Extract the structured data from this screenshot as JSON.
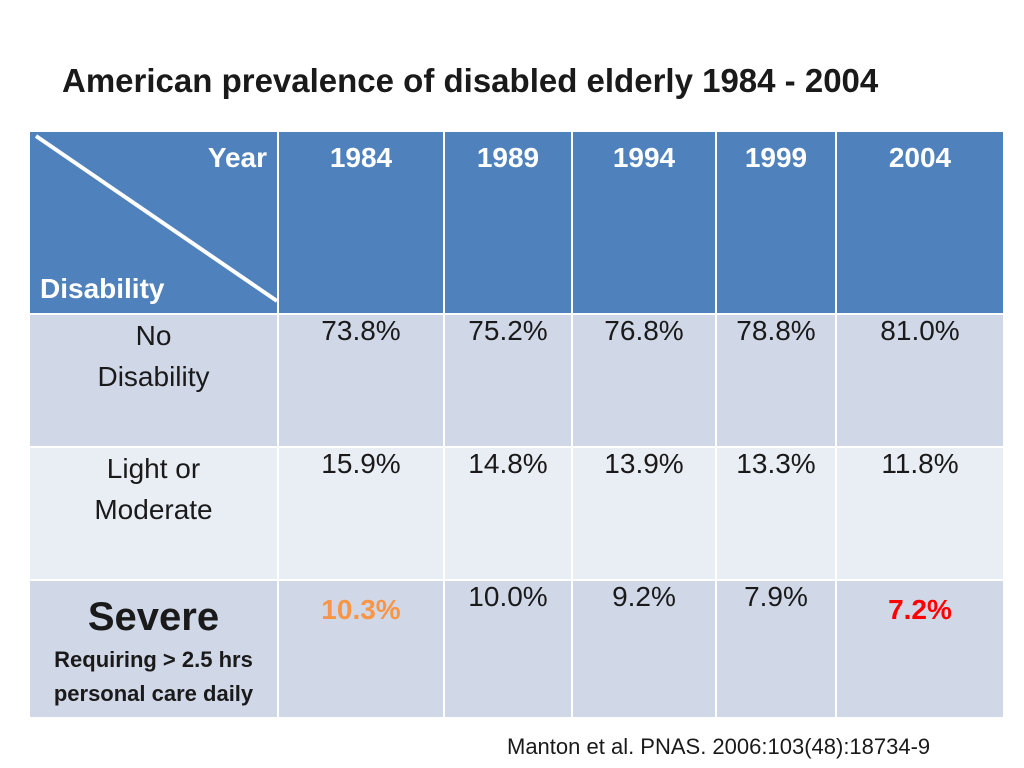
{
  "title": "American prevalence of disabled elderly 1984 - 2004",
  "header": {
    "corner_top": "Year",
    "corner_bottom": "Disability",
    "years": [
      "1984",
      "1989",
      "1994",
      "1999",
      "2004"
    ]
  },
  "rows": [
    {
      "label_line1": "No",
      "label_line2": "Disability",
      "values": [
        "73.8%",
        "75.2%",
        "76.8%",
        "78.8%",
        "81.0%"
      ]
    },
    {
      "label_line1": "Light or",
      "label_line2": "Moderate",
      "values": [
        "15.9%",
        "14.8%",
        "13.9%",
        "13.3%",
        "11.8%"
      ]
    },
    {
      "label_main": "Severe",
      "label_sub1": "Requiring > 2.5 hrs",
      "label_sub2": "personal care daily",
      "values": [
        "10.3%",
        "10.0%",
        "9.2%",
        "7.9%",
        "7.2%"
      ]
    }
  ],
  "source": "Manton et al. PNAS. 2006:103(48):18734-9",
  "colors": {
    "header_bg": "#4f81bd",
    "row_dark": "#d0d8e8",
    "row_light": "#e9edf4",
    "highlight_1984": "#f79646",
    "highlight_2004": "#ff0000"
  },
  "chart_data": {
    "type": "table",
    "title": "American prevalence of disabled elderly 1984 - 2004",
    "columns": [
      "1984",
      "1989",
      "1994",
      "1999",
      "2004"
    ],
    "series": [
      {
        "name": "No Disability",
        "values": [
          73.8,
          75.2,
          76.8,
          78.8,
          81.0
        ]
      },
      {
        "name": "Light or Moderate",
        "values": [
          15.9,
          14.8,
          13.9,
          13.3,
          11.8
        ]
      },
      {
        "name": "Severe (Requiring > 2.5 hrs personal care daily)",
        "values": [
          10.3,
          10.0,
          9.2,
          7.9,
          7.2
        ]
      }
    ],
    "unit": "%",
    "annotations": [
      "Manton et al. PNAS. 2006:103(48):18734-9"
    ]
  }
}
